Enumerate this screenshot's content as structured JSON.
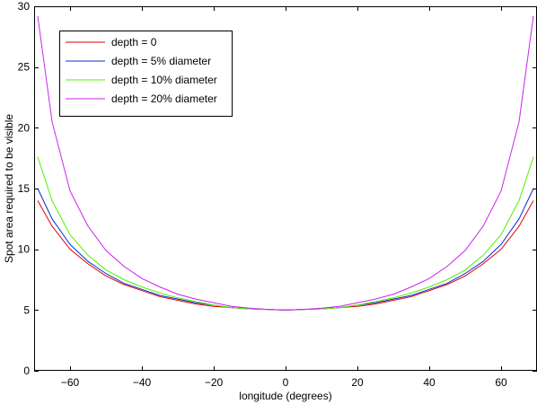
{
  "chart_data": {
    "type": "line",
    "title": "",
    "xlabel": "longitude (degrees)",
    "ylabel": "Spot area required to be visible",
    "xlim": [
      -70,
      70
    ],
    "ylim": [
      0,
      30
    ],
    "xticks": [
      -60,
      -40,
      -20,
      0,
      20,
      40,
      60
    ],
    "yticks": [
      0,
      5,
      10,
      15,
      20,
      25,
      30
    ],
    "xtick_labels": [
      "−60",
      "−40",
      "−20",
      "0",
      "20",
      "40",
      "60"
    ],
    "ytick_labels": [
      "0",
      "5",
      "10",
      "15",
      "20",
      "25",
      "30"
    ],
    "grid": false,
    "legend_position": "top-left",
    "x": [
      -69,
      -65,
      -60,
      -55,
      -50,
      -45,
      -40,
      -35,
      -30,
      -25,
      -20,
      -15,
      -10,
      -5,
      0,
      5,
      10,
      15,
      20,
      25,
      30,
      35,
      40,
      45,
      50,
      55,
      60,
      65,
      69
    ],
    "series": [
      {
        "name": "depth = 0",
        "color": "#e00000",
        "values": [
          14.0,
          11.9,
          10.0,
          8.8,
          7.8,
          7.1,
          6.6,
          6.1,
          5.8,
          5.5,
          5.3,
          5.2,
          5.1,
          5.05,
          5.0,
          5.05,
          5.1,
          5.2,
          5.3,
          5.5,
          5.8,
          6.1,
          6.6,
          7.1,
          7.8,
          8.8,
          10.0,
          11.9,
          14.0
        ]
      },
      {
        "name": "depth = 5% diameter",
        "color": "#0030d0",
        "values": [
          15.0,
          12.5,
          10.4,
          9.0,
          8.0,
          7.2,
          6.7,
          6.2,
          5.9,
          5.6,
          5.4,
          5.2,
          5.1,
          5.05,
          5.0,
          5.05,
          5.1,
          5.2,
          5.4,
          5.6,
          5.9,
          6.2,
          6.7,
          7.2,
          8.0,
          9.0,
          10.4,
          12.5,
          15.0
        ]
      },
      {
        "name": "depth = 10% diameter",
        "color": "#55ee00",
        "values": [
          17.6,
          14.0,
          11.2,
          9.5,
          8.3,
          7.5,
          6.9,
          6.4,
          6.0,
          5.7,
          5.4,
          5.2,
          5.1,
          5.05,
          5.0,
          5.05,
          5.1,
          5.2,
          5.4,
          5.7,
          6.0,
          6.4,
          6.9,
          7.5,
          8.3,
          9.5,
          11.2,
          14.0,
          17.6
        ]
      },
      {
        "name": "depth = 20% diameter",
        "color": "#cc22ee",
        "values": [
          29.2,
          20.5,
          14.8,
          11.9,
          9.9,
          8.6,
          7.6,
          6.9,
          6.3,
          5.9,
          5.6,
          5.3,
          5.15,
          5.05,
          5.0,
          5.05,
          5.15,
          5.3,
          5.6,
          5.9,
          6.3,
          6.9,
          7.6,
          8.6,
          9.9,
          11.9,
          14.8,
          20.5,
          29.2
        ]
      }
    ]
  }
}
